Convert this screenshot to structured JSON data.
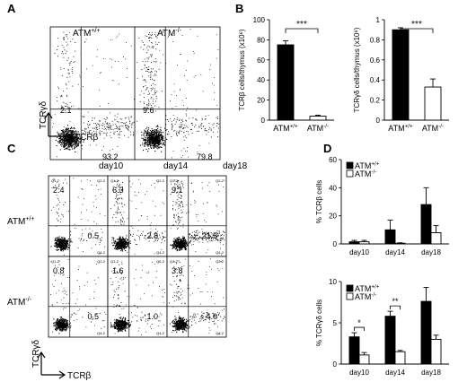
{
  "panel_letters": [
    "A",
    "B",
    "C",
    "D"
  ],
  "genotypes": {
    "wt": {
      "base": "ATM",
      "sup": "+/+"
    },
    "ko": {
      "base": "ATM",
      "sup": "-/-"
    }
  },
  "axis_labels": {
    "tcrgd": "TCRγδ",
    "tcrb": "TCRβ"
  },
  "panel_a": {
    "plots": [
      {
        "genotype": "wt",
        "gd_pct": "2.1",
        "b_pct": "93.2"
      },
      {
        "genotype": "ko",
        "gd_pct": "9.6",
        "b_pct": "79.8"
      }
    ]
  },
  "panel_c": {
    "days": [
      "day10",
      "day14",
      "day18"
    ],
    "quadrant_tags": {
      "q1": "Q1-2",
      "q2": "Q2-2",
      "q4": "Q4-2"
    },
    "rows": [
      {
        "genotype": "wt",
        "gd": [
          "2.4",
          "6.3",
          "9.1"
        ],
        "b": [
          "0.5",
          "2.8",
          "21.5"
        ]
      },
      {
        "genotype": "ko",
        "gd": [
          "0.8",
          "1.6",
          "3.8"
        ],
        "b": [
          "0.5",
          "1.0",
          "4.0"
        ]
      }
    ]
  },
  "chart_data": [
    {
      "type": "bar",
      "panel": "B-left",
      "categories": [
        "ATM+/+",
        "ATM-/-"
      ],
      "values": [
        75,
        4
      ],
      "errors": [
        4,
        1
      ],
      "ylabel": "TCRβ cells/thymus (x10⁶)",
      "ylim": [
        0,
        100
      ],
      "yticks": [
        0,
        20,
        40,
        60,
        80,
        100
      ],
      "significance": "***",
      "colors": [
        "#000000",
        "#ffffff"
      ]
    },
    {
      "type": "bar",
      "panel": "B-right",
      "categories": [
        "ATM+/+",
        "ATM-/-"
      ],
      "values": [
        0.9,
        0.33
      ],
      "errors": [
        0.02,
        0.08
      ],
      "ylabel": "TCRγδ cells/thymus (x10⁶)",
      "ylim": [
        0,
        1
      ],
      "yticks": [
        0,
        0.2,
        0.4,
        0.6,
        0.8,
        1
      ],
      "significance": "***",
      "colors": [
        "#000000",
        "#ffffff"
      ]
    },
    {
      "type": "bar",
      "panel": "D-top",
      "categories": [
        "day10",
        "day14",
        "day18"
      ],
      "series": [
        {
          "name": "ATM+/+",
          "values": [
            1.5,
            10,
            28
          ],
          "errors": [
            1,
            7,
            12
          ]
        },
        {
          "name": "ATM-/-",
          "values": [
            1.5,
            0.5,
            8
          ],
          "errors": [
            1,
            0.3,
            5
          ]
        }
      ],
      "ylabel": "% TCRβ cells",
      "ylim": [
        0,
        60
      ],
      "yticks": [
        0,
        20,
        40,
        60
      ],
      "legend": "top-left",
      "colors": [
        "#000000",
        "#ffffff"
      ]
    },
    {
      "type": "bar",
      "panel": "D-bottom",
      "categories": [
        "day10",
        "day14",
        "day18"
      ],
      "series": [
        {
          "name": "ATM+/+",
          "values": [
            3.3,
            5.8,
            7.6
          ],
          "errors": [
            0.5,
            0.6,
            1.7
          ]
        },
        {
          "name": "ATM-/-",
          "values": [
            1.1,
            1.5,
            3.0
          ],
          "errors": [
            0.3,
            0.15,
            0.5
          ]
        }
      ],
      "ylabel": "% TCRγδ cells",
      "ylim": [
        0,
        10
      ],
      "yticks": [
        0,
        5,
        10
      ],
      "legend": "top-left",
      "significance": [
        "*",
        "**",
        ""
      ],
      "colors": [
        "#000000",
        "#ffffff"
      ]
    }
  ]
}
